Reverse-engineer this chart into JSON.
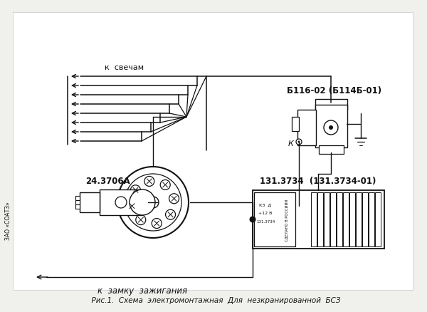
{
  "bg_color": "#f0f0ec",
  "white": "#ffffff",
  "line_color": "#111111",
  "title": "  Рис.1.  Схема  электромонтажная  Для  незкранированной  БСЗ",
  "label_sparks": "к  свечам",
  "label_ignition": "к  замку  зажигания",
  "label_distributor": "24.3706А",
  "label_coil": "Б116-02 (Б114Б-01)",
  "label_module": "131.3734  (131.3734-01)",
  "label_k": "К",
  "label_side": "ЗАО «СОАТЗ»",
  "figsize": [
    6.0,
    4.39
  ],
  "dpi": 100
}
